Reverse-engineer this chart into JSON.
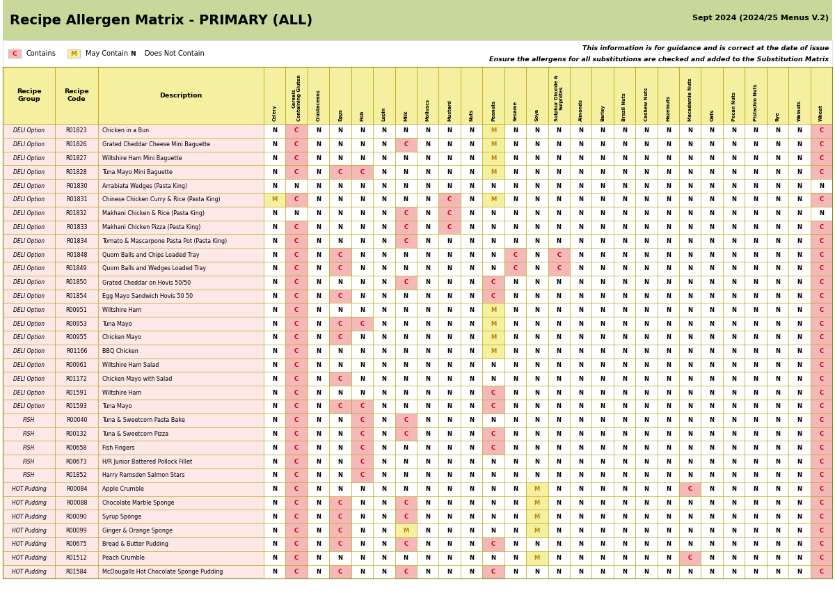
{
  "title": "Recipe Allergen Matrix - PRIMARY (ALL)",
  "date_label": "Sept 2024 (2024/25 Menus V.2)",
  "info_line1": "This information is for guidance and is correct at the date of issue",
  "info_line2": "Ensure the allergens for all substitutions are checked and added to the Substitution Matrix",
  "legend": [
    {
      "symbol": "C",
      "color": "#f4b8b8",
      "text": "Contains"
    },
    {
      "symbol": "M",
      "color": "#f5f0a0",
      "text": "May Contain"
    },
    {
      "symbol": "N",
      "color": "#ffffff",
      "text": "Does Not Contain"
    }
  ],
  "col_headers": [
    "Celery",
    "Cereals\nContaining Gluten",
    "Crustaceans",
    "Eggs",
    "Fish",
    "Lupin",
    "Milk",
    "Molluscs",
    "Mustard",
    "Nuts",
    "Peanuts",
    "Sesame",
    "Soya",
    "Sulphur Dioxide &\nSulphites",
    "Almonds",
    "Barley",
    "Brazil Nuts",
    "Cashew Nuts",
    "Hazelnuts",
    "Macadamia Nuts",
    "Oats",
    "Pecan Nuts",
    "Pistachio Nuts",
    "Rye",
    "Walnuts",
    "Wheat"
  ],
  "bg_header": "#f5f0a0",
  "bg_light_green": "#c8d89a",
  "bg_white": "#ffffff",
  "bg_pink": "#f4b8b8",
  "bg_row_pink": "#fce4e4",
  "rows": [
    {
      "group": "DELI Option",
      "code": "R01823",
      "desc": "Chicken in a Bun",
      "vals": [
        "N",
        "C",
        "N",
        "N",
        "N",
        "N",
        "N",
        "N",
        "N",
        "N",
        "M",
        "N",
        "N",
        "N",
        "N",
        "N",
        "N",
        "N",
        "N",
        "N",
        "N",
        "N",
        "N",
        "N",
        "N",
        "C"
      ]
    },
    {
      "group": "DELI Option",
      "code": "R01826",
      "desc": "Grated Cheddar Cheese Mini Baguette",
      "vals": [
        "N",
        "C",
        "N",
        "N",
        "N",
        "N",
        "C",
        "N",
        "N",
        "N",
        "M",
        "N",
        "N",
        "N",
        "N",
        "N",
        "N",
        "N",
        "N",
        "N",
        "N",
        "N",
        "N",
        "N",
        "N",
        "C"
      ]
    },
    {
      "group": "DELI Option",
      "code": "R01827",
      "desc": "Wiltshire Ham Mini Baguette",
      "vals": [
        "N",
        "C",
        "N",
        "N",
        "N",
        "N",
        "N",
        "N",
        "N",
        "N",
        "M",
        "N",
        "N",
        "N",
        "N",
        "N",
        "N",
        "N",
        "N",
        "N",
        "N",
        "N",
        "N",
        "N",
        "N",
        "C"
      ]
    },
    {
      "group": "DELI Option",
      "code": "R01828",
      "desc": "Tuna Mayo Mini Baguette",
      "vals": [
        "N",
        "C",
        "N",
        "C",
        "C",
        "N",
        "N",
        "N",
        "N",
        "N",
        "M",
        "N",
        "N",
        "N",
        "N",
        "N",
        "N",
        "N",
        "N",
        "N",
        "N",
        "N",
        "N",
        "N",
        "N",
        "C"
      ]
    },
    {
      "group": "DELI Option",
      "code": "R01830",
      "desc": "Arrabiata Wedges (Pasta King)",
      "vals": [
        "N",
        "N",
        "N",
        "N",
        "N",
        "N",
        "N",
        "N",
        "N",
        "N",
        "N",
        "N",
        "N",
        "N",
        "N",
        "N",
        "N",
        "N",
        "N",
        "N",
        "N",
        "N",
        "N",
        "N",
        "N",
        "N"
      ]
    },
    {
      "group": "DELI Option",
      "code": "R01831",
      "desc": "Chinese Chicken Curry & Rice (Pasta King)",
      "vals": [
        "M",
        "C",
        "N",
        "N",
        "N",
        "N",
        "N",
        "N",
        "C",
        "N",
        "M",
        "N",
        "N",
        "N",
        "N",
        "N",
        "N",
        "N",
        "N",
        "N",
        "N",
        "N",
        "N",
        "N",
        "N",
        "C"
      ]
    },
    {
      "group": "DELI Option",
      "code": "R01832",
      "desc": "Makhani Chicken & Rice (Pasta King)",
      "vals": [
        "N",
        "N",
        "N",
        "N",
        "N",
        "N",
        "C",
        "N",
        "C",
        "N",
        "N",
        "N",
        "N",
        "N",
        "N",
        "N",
        "N",
        "N",
        "N",
        "N",
        "N",
        "N",
        "N",
        "N",
        "N",
        "N"
      ]
    },
    {
      "group": "DELI Option",
      "code": "R01833",
      "desc": "Makhani Chicken Pizza (Pasta King)",
      "vals": [
        "N",
        "C",
        "N",
        "N",
        "N",
        "N",
        "C",
        "N",
        "C",
        "N",
        "N",
        "N",
        "N",
        "N",
        "N",
        "N",
        "N",
        "N",
        "N",
        "N",
        "N",
        "N",
        "N",
        "N",
        "N",
        "C"
      ]
    },
    {
      "group": "DELI Option",
      "code": "R01834",
      "desc": "Tomato & Mascarpone Pasta Pot (Pasta King)",
      "vals": [
        "N",
        "C",
        "N",
        "N",
        "N",
        "N",
        "C",
        "N",
        "N",
        "N",
        "N",
        "N",
        "N",
        "N",
        "N",
        "N",
        "N",
        "N",
        "N",
        "N",
        "N",
        "N",
        "N",
        "N",
        "N",
        "C"
      ]
    },
    {
      "group": "DELI Option",
      "code": "R01848",
      "desc": "Quom Balls and Chips Loaded Tray",
      "vals": [
        "N",
        "C",
        "N",
        "C",
        "N",
        "N",
        "N",
        "N",
        "N",
        "N",
        "N",
        "C",
        "N",
        "C",
        "N",
        "N",
        "N",
        "N",
        "N",
        "N",
        "N",
        "N",
        "N",
        "N",
        "N",
        "C"
      ]
    },
    {
      "group": "DELI Option",
      "code": "R01849",
      "desc": "Quom Balls and Wedges Loaded Tray",
      "vals": [
        "N",
        "C",
        "N",
        "C",
        "N",
        "N",
        "N",
        "N",
        "N",
        "N",
        "N",
        "C",
        "N",
        "C",
        "N",
        "N",
        "N",
        "N",
        "N",
        "N",
        "N",
        "N",
        "N",
        "N",
        "N",
        "C"
      ]
    },
    {
      "group": "DELI Option",
      "code": "R01850",
      "desc": "Grated Cheddar on Hovis 50/50",
      "vals": [
        "N",
        "C",
        "N",
        "N",
        "N",
        "N",
        "C",
        "N",
        "N",
        "N",
        "C",
        "N",
        "N",
        "N",
        "N",
        "N",
        "N",
        "N",
        "N",
        "N",
        "N",
        "N",
        "N",
        "N",
        "N",
        "C"
      ]
    },
    {
      "group": "DELI Option",
      "code": "R01854",
      "desc": "Egg Mayo Sandwich Hovis 50 50",
      "vals": [
        "N",
        "C",
        "N",
        "C",
        "N",
        "N",
        "N",
        "N",
        "N",
        "N",
        "C",
        "N",
        "N",
        "N",
        "N",
        "N",
        "N",
        "N",
        "N",
        "N",
        "N",
        "N",
        "N",
        "N",
        "N",
        "C"
      ]
    },
    {
      "group": "DELI Option",
      "code": "R00951",
      "desc": "Wiltshire Ham",
      "vals": [
        "N",
        "C",
        "N",
        "N",
        "N",
        "N",
        "N",
        "N",
        "N",
        "N",
        "M",
        "N",
        "N",
        "N",
        "N",
        "N",
        "N",
        "N",
        "N",
        "N",
        "N",
        "N",
        "N",
        "N",
        "N",
        "C"
      ]
    },
    {
      "group": "DELI Option",
      "code": "R00953",
      "desc": "Tuna Mayo",
      "vals": [
        "N",
        "C",
        "N",
        "C",
        "C",
        "N",
        "N",
        "N",
        "N",
        "N",
        "M",
        "N",
        "N",
        "N",
        "N",
        "N",
        "N",
        "N",
        "N",
        "N",
        "N",
        "N",
        "N",
        "N",
        "N",
        "C"
      ]
    },
    {
      "group": "DELI Option",
      "code": "R00955",
      "desc": "Chicken Mayo",
      "vals": [
        "N",
        "C",
        "N",
        "C",
        "N",
        "N",
        "N",
        "N",
        "N",
        "N",
        "M",
        "N",
        "N",
        "N",
        "N",
        "N",
        "N",
        "N",
        "N",
        "N",
        "N",
        "N",
        "N",
        "N",
        "N",
        "C"
      ]
    },
    {
      "group": "DELI Option",
      "code": "R01166",
      "desc": "BBQ Chicken",
      "vals": [
        "N",
        "C",
        "N",
        "N",
        "N",
        "N",
        "N",
        "N",
        "N",
        "N",
        "M",
        "N",
        "N",
        "N",
        "N",
        "N",
        "N",
        "N",
        "N",
        "N",
        "N",
        "N",
        "N",
        "N",
        "N",
        "C"
      ]
    },
    {
      "group": "DELI Option",
      "code": "R00961",
      "desc": "Wiltshire Ham Salad",
      "vals": [
        "N",
        "C",
        "N",
        "N",
        "N",
        "N",
        "N",
        "N",
        "N",
        "N",
        "N",
        "N",
        "N",
        "N",
        "N",
        "N",
        "N",
        "N",
        "N",
        "N",
        "N",
        "N",
        "N",
        "N",
        "N",
        "C"
      ]
    },
    {
      "group": "DELI Option",
      "code": "R01172",
      "desc": "Chicken Mayo with Salad",
      "vals": [
        "N",
        "C",
        "N",
        "C",
        "N",
        "N",
        "N",
        "N",
        "N",
        "N",
        "N",
        "N",
        "N",
        "N",
        "N",
        "N",
        "N",
        "N",
        "N",
        "N",
        "N",
        "N",
        "N",
        "N",
        "N",
        "C"
      ]
    },
    {
      "group": "DELI Option",
      "code": "R01591",
      "desc": "Wiltshire Ham",
      "vals": [
        "N",
        "C",
        "N",
        "N",
        "N",
        "N",
        "N",
        "N",
        "N",
        "N",
        "C",
        "N",
        "N",
        "N",
        "N",
        "N",
        "N",
        "N",
        "N",
        "N",
        "N",
        "N",
        "N",
        "N",
        "N",
        "C"
      ]
    },
    {
      "group": "DELI Option",
      "code": "R01593",
      "desc": "Tuna Mayo",
      "vals": [
        "N",
        "C",
        "N",
        "C",
        "C",
        "N",
        "N",
        "N",
        "N",
        "N",
        "C",
        "N",
        "N",
        "N",
        "N",
        "N",
        "N",
        "N",
        "N",
        "N",
        "N",
        "N",
        "N",
        "N",
        "N",
        "C"
      ]
    },
    {
      "group": "FISH",
      "code": "R00040",
      "desc": "Tuna & Sweetcorn Pasta Bake",
      "vals": [
        "N",
        "C",
        "N",
        "N",
        "C",
        "N",
        "C",
        "N",
        "N",
        "N",
        "N",
        "N",
        "N",
        "N",
        "N",
        "N",
        "N",
        "N",
        "N",
        "N",
        "N",
        "N",
        "N",
        "N",
        "N",
        "C"
      ]
    },
    {
      "group": "FISH",
      "code": "R00132",
      "desc": "Tuna & Sweetcorn Pizza",
      "vals": [
        "N",
        "C",
        "N",
        "N",
        "C",
        "N",
        "C",
        "N",
        "N",
        "N",
        "C",
        "N",
        "N",
        "N",
        "N",
        "N",
        "N",
        "N",
        "N",
        "N",
        "N",
        "N",
        "N",
        "N",
        "N",
        "C"
      ]
    },
    {
      "group": "FISH",
      "code": "R00658",
      "desc": "Fish Fingers",
      "vals": [
        "N",
        "C",
        "N",
        "N",
        "C",
        "N",
        "N",
        "N",
        "N",
        "N",
        "C",
        "N",
        "N",
        "N",
        "N",
        "N",
        "N",
        "N",
        "N",
        "N",
        "N",
        "N",
        "N",
        "N",
        "N",
        "C"
      ]
    },
    {
      "group": "FISH",
      "code": "R00673",
      "desc": "H/R Junior Battered Pollock Fillet",
      "vals": [
        "N",
        "C",
        "N",
        "N",
        "C",
        "N",
        "N",
        "N",
        "N",
        "N",
        "N",
        "N",
        "N",
        "N",
        "N",
        "N",
        "N",
        "N",
        "N",
        "N",
        "N",
        "N",
        "N",
        "N",
        "N",
        "C"
      ]
    },
    {
      "group": "FISH",
      "code": "R01852",
      "desc": "Harry Ramsden Salmon Stars",
      "vals": [
        "N",
        "C",
        "N",
        "N",
        "C",
        "N",
        "N",
        "N",
        "N",
        "N",
        "N",
        "N",
        "N",
        "N",
        "N",
        "N",
        "N",
        "N",
        "N",
        "N",
        "N",
        "N",
        "N",
        "N",
        "N",
        "C"
      ]
    },
    {
      "group": "HOT Pudding",
      "code": "R00084",
      "desc": "Apple Crumble",
      "vals": [
        "N",
        "C",
        "N",
        "N",
        "N",
        "N",
        "N",
        "N",
        "N",
        "N",
        "N",
        "N",
        "M",
        "N",
        "N",
        "N",
        "N",
        "N",
        "N",
        "C",
        "N",
        "N",
        "N",
        "N",
        "N",
        "C"
      ]
    },
    {
      "group": "HOT Pudding",
      "code": "R00088",
      "desc": "Chocolate Marble Sponge",
      "vals": [
        "N",
        "C",
        "N",
        "C",
        "N",
        "N",
        "C",
        "N",
        "N",
        "N",
        "N",
        "N",
        "M",
        "N",
        "N",
        "N",
        "N",
        "N",
        "N",
        "N",
        "N",
        "N",
        "N",
        "N",
        "N",
        "C"
      ]
    },
    {
      "group": "HOT Pudding",
      "code": "R00090",
      "desc": "Syrup Sponge",
      "vals": [
        "N",
        "C",
        "N",
        "C",
        "N",
        "N",
        "C",
        "N",
        "N",
        "N",
        "N",
        "N",
        "M",
        "N",
        "N",
        "N",
        "N",
        "N",
        "N",
        "N",
        "N",
        "N",
        "N",
        "N",
        "N",
        "C"
      ]
    },
    {
      "group": "HOT Pudding",
      "code": "R00099",
      "desc": "Ginger & Orange Sponge",
      "vals": [
        "N",
        "C",
        "N",
        "C",
        "N",
        "N",
        "M",
        "N",
        "N",
        "N",
        "N",
        "N",
        "M",
        "N",
        "N",
        "N",
        "N",
        "N",
        "N",
        "N",
        "N",
        "N",
        "N",
        "N",
        "N",
        "C"
      ]
    },
    {
      "group": "HOT Pudding",
      "code": "R00675",
      "desc": "Bread & Butter Pudding",
      "vals": [
        "N",
        "C",
        "N",
        "C",
        "N",
        "N",
        "C",
        "N",
        "N",
        "N",
        "C",
        "N",
        "N",
        "N",
        "N",
        "N",
        "N",
        "N",
        "N",
        "N",
        "N",
        "N",
        "N",
        "N",
        "N",
        "C"
      ]
    },
    {
      "group": "HOT Pudding",
      "code": "R01512",
      "desc": "Peach Crumble",
      "vals": [
        "N",
        "C",
        "N",
        "N",
        "N",
        "N",
        "N",
        "N",
        "N",
        "N",
        "N",
        "N",
        "M",
        "N",
        "N",
        "N",
        "N",
        "N",
        "N",
        "C",
        "N",
        "N",
        "N",
        "N",
        "N",
        "C"
      ]
    },
    {
      "group": "HOT Pudding",
      "code": "R01584",
      "desc": "McDougalls Hot Chocolate Sponge Pudding",
      "vals": [
        "N",
        "C",
        "N",
        "C",
        "N",
        "N",
        "C",
        "N",
        "N",
        "N",
        "C",
        "N",
        "N",
        "N",
        "N",
        "N",
        "N",
        "N",
        "N",
        "N",
        "N",
        "N",
        "N",
        "N",
        "N",
        "C"
      ]
    }
  ]
}
